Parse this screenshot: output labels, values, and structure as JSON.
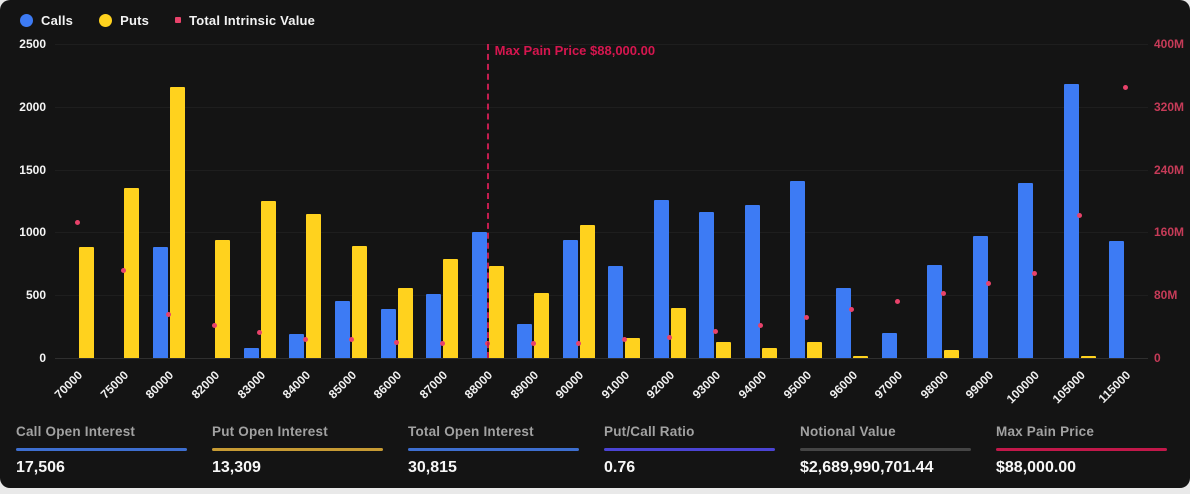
{
  "legend": {
    "items": [
      {
        "label": "Calls",
        "color": "#3D7BF4",
        "shape": "circle"
      },
      {
        "label": "Puts",
        "color": "#FFD21E",
        "shape": "circle"
      },
      {
        "label": "Total Intrinsic Value",
        "color": "#E8426A",
        "shape": "square"
      }
    ]
  },
  "chart_data": {
    "type": "bar",
    "categories": [
      "70000",
      "75000",
      "80000",
      "82000",
      "83000",
      "84000",
      "85000",
      "86000",
      "87000",
      "88000",
      "89000",
      "90000",
      "91000",
      "92000",
      "93000",
      "94000",
      "95000",
      "96000",
      "97000",
      "98000",
      "99000",
      "100000",
      "105000",
      "115000"
    ],
    "series": [
      {
        "name": "Calls",
        "type": "bar",
        "axis": "left",
        "color": "#3D7BF4",
        "values": [
          0,
          0,
          880,
          0,
          80,
          190,
          450,
          390,
          510,
          1000,
          270,
          940,
          730,
          1260,
          1160,
          1220,
          1410,
          560,
          200,
          740,
          970,
          1390,
          2180,
          930
        ]
      },
      {
        "name": "Puts",
        "type": "bar",
        "axis": "left",
        "color": "#FFD21E",
        "values": [
          880,
          1350,
          2160,
          940,
          1250,
          1150,
          890,
          560,
          790,
          730,
          520,
          1060,
          160,
          400,
          130,
          80,
          130,
          20,
          0,
          60,
          0,
          0,
          20,
          0
        ]
      },
      {
        "name": "Total Intrinsic Value",
        "type": "scatter",
        "axis": "right",
        "color": "#E8426A",
        "values_millions": [
          173,
          111,
          56,
          41,
          32,
          24,
          24,
          20,
          19,
          18,
          18,
          19,
          23,
          26,
          34,
          41,
          51,
          62,
          72,
          82,
          95,
          108,
          181,
          344
        ]
      }
    ],
    "left_axis": {
      "ticks": [
        "0",
        "500",
        "1000",
        "1500",
        "2000",
        "2500"
      ],
      "min": 0,
      "max": 2500,
      "color": "#f5f5f5"
    },
    "right_axis": {
      "ticks": [
        "0",
        "80M",
        "160M",
        "240M",
        "320M",
        "400M"
      ],
      "min": 0,
      "max_millions": 400,
      "color": "#c63b58"
    },
    "annotation": {
      "label": "Max Pain Price $88,000.00",
      "category": "88000",
      "color": "#d6164f"
    },
    "grid": true,
    "legend_position": "top-left",
    "title": ""
  },
  "stats": [
    {
      "label": "Call Open Interest",
      "value": "17,506",
      "accent": "#3E6FD0"
    },
    {
      "label": "Put Open Interest",
      "value": "13,309",
      "accent": "#C79B34"
    },
    {
      "label": "Total Open Interest",
      "value": "30,815",
      "accent": "#3E6FD0"
    },
    {
      "label": "Put/Call Ratio",
      "value": "0.76",
      "accent": "#4B44D4"
    },
    {
      "label": "Notional Value",
      "value": "$2,689,990,701.44",
      "accent": "#454545"
    },
    {
      "label": "Max Pain Price",
      "value": "$88,000.00",
      "accent": "#C2184A"
    }
  ],
  "colors": {
    "card_bg": "#141414",
    "page_bg": "#e9e9e9",
    "gridline": "#1e1e1e",
    "calls": "#3D7BF4",
    "puts": "#FFD21E",
    "intrinsic": "#E8426A",
    "max_pain": "#d6164f"
  }
}
